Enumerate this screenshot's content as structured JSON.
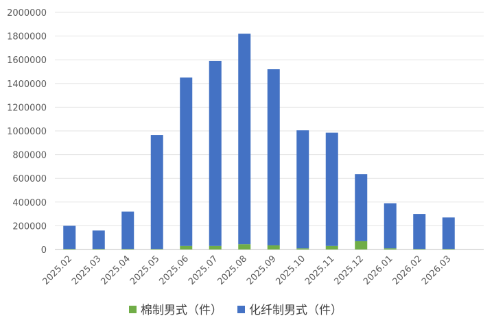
{
  "chart_data": {
    "type": "stacked-bar",
    "categories": [
      "2025.02",
      "2025.03",
      "2025.04",
      "2025.05",
      "2025.06",
      "2025.07",
      "2025.08",
      "2025.09",
      "2025.10",
      "2025.11",
      "2025.12",
      "2026.01",
      "2026.02",
      "2026.03"
    ],
    "series": [
      {
        "name": "棉制男式（件）",
        "color": "#70ad47",
        "values": [
          5000,
          5000,
          5000,
          5000,
          30000,
          30000,
          45000,
          35000,
          10000,
          30000,
          70000,
          10000,
          5000,
          5000
        ]
      },
      {
        "name": "化纤制男式（件）",
        "color": "#4472c4",
        "values": [
          195000,
          155000,
          315000,
          960000,
          1420000,
          1560000,
          1775000,
          1485000,
          995000,
          955000,
          565000,
          380000,
          295000,
          265000
        ]
      }
    ],
    "ylim": [
      0,
      2000000
    ],
    "yticks": [
      0,
      200000,
      400000,
      600000,
      800000,
      1000000,
      1200000,
      1400000,
      1600000,
      1800000,
      2000000
    ],
    "grid": true
  }
}
